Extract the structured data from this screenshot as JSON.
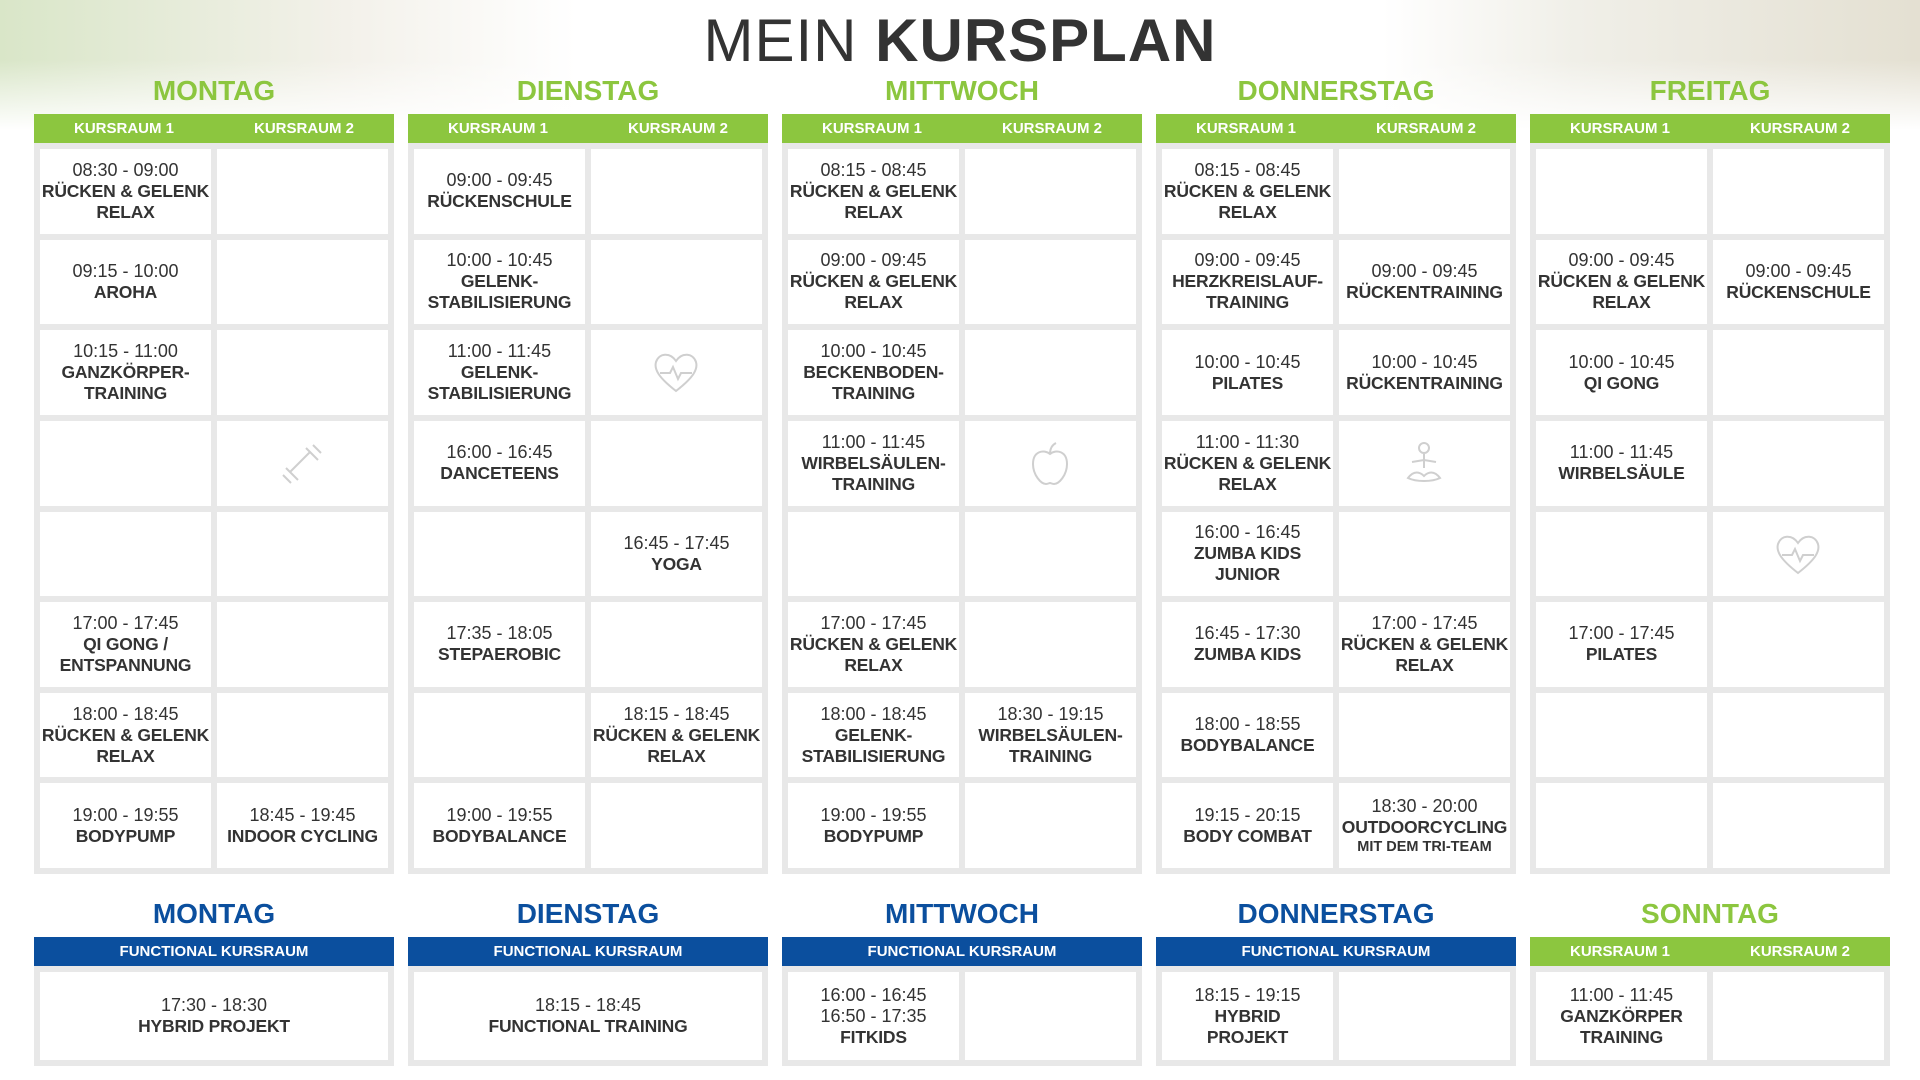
{
  "header": {
    "title_light": "MEIN",
    "title_bold": "KURSPLAN"
  },
  "week": [
    {
      "day": "MONTAG",
      "rooms": [
        "KURSRAUM 1",
        "KURSRAUM 2"
      ],
      "rows": [
        [
          {
            "time": [
              "08:30 - 09:00"
            ],
            "name": [
              "RÜCKEN & GELENK",
              "RELAX"
            ]
          },
          null
        ],
        [
          {
            "time": [
              "09:15 - 10:00"
            ],
            "name": [
              "AROHA"
            ]
          },
          null
        ],
        [
          {
            "time": [
              "10:15 - 11:00"
            ],
            "name": [
              "GANZKÖRPER-",
              "TRAINING"
            ]
          },
          null
        ],
        [
          null,
          null
        ],
        [
          null,
          null
        ],
        [
          {
            "time": [
              "17:00 - 17:45"
            ],
            "name": [
              "QI GONG /",
              "ENTSPANNUNG"
            ]
          },
          null
        ],
        [
          {
            "time": [
              "18:00 - 18:45"
            ],
            "name": [
              "RÜCKEN & GELENK",
              "RELAX"
            ]
          },
          null
        ],
        [
          {
            "time": [
              "19:00 - 19:55"
            ],
            "name": [
              "BODYPUMP"
            ]
          },
          {
            "time": [
              "18:45 - 19:45"
            ],
            "name": [
              "INDOOR CYCLING"
            ]
          }
        ]
      ]
    },
    {
      "day": "DIENSTAG",
      "rooms": [
        "KURSRAUM 1",
        "KURSRAUM 2"
      ],
      "rows": [
        [
          {
            "time": [
              "09:00 - 09:45"
            ],
            "name": [
              "RÜCKENSCHULE"
            ]
          },
          null
        ],
        [
          {
            "time": [
              "10:00 - 10:45"
            ],
            "name": [
              "GELENK-",
              "STABILISIERUNG"
            ]
          },
          null
        ],
        [
          {
            "time": [
              "11:00 - 11:45"
            ],
            "name": [
              "GELENK-",
              "STABILISIERUNG"
            ]
          },
          null
        ],
        [
          {
            "time": [
              "16:00 - 16:45"
            ],
            "name": [
              "DANCETEENS"
            ]
          },
          null
        ],
        [
          null,
          {
            "time": [
              "16:45 - 17:45"
            ],
            "name": [
              "YOGA"
            ]
          }
        ],
        [
          {
            "time": [
              "17:35 - 18:05"
            ],
            "name": [
              "STEPAEROBIC"
            ]
          },
          null
        ],
        [
          null,
          {
            "time": [
              "18:15 - 18:45"
            ],
            "name": [
              "RÜCKEN & GELENK",
              "RELAX"
            ]
          }
        ],
        [
          {
            "time": [
              "19:00 - 19:55"
            ],
            "name": [
              "BODYBALANCE"
            ]
          },
          null
        ]
      ]
    },
    {
      "day": "MITTWOCH",
      "rooms": [
        "KURSRAUM 1",
        "KURSRAUM 2"
      ],
      "rows": [
        [
          {
            "time": [
              "08:15 - 08:45"
            ],
            "name": [
              "RÜCKEN & GELENK",
              "RELAX"
            ]
          },
          null
        ],
        [
          {
            "time": [
              "09:00 - 09:45"
            ],
            "name": [
              "RÜCKEN & GELENK",
              "RELAX"
            ]
          },
          null
        ],
        [
          {
            "time": [
              "10:00 - 10:45"
            ],
            "name": [
              "BECKENBODEN-",
              "TRAINING"
            ]
          },
          null
        ],
        [
          {
            "time": [
              "11:00 - 11:45"
            ],
            "name": [
              "WIRBELSÄULEN-",
              "TRAINING"
            ]
          },
          null
        ],
        [
          null,
          null
        ],
        [
          {
            "time": [
              "17:00 - 17:45"
            ],
            "name": [
              "RÜCKEN & GELENK",
              "RELAX"
            ]
          },
          null
        ],
        [
          {
            "time": [
              "18:00 - 18:45"
            ],
            "name": [
              "GELENK-",
              "STABILISIERUNG"
            ]
          },
          {
            "time": [
              "18:30 - 19:15"
            ],
            "name": [
              "WIRBELSÄULEN-",
              "TRAINING"
            ]
          }
        ],
        [
          {
            "time": [
              "19:00 - 19:55"
            ],
            "name": [
              "BODYPUMP"
            ]
          },
          null
        ]
      ]
    },
    {
      "day": "DONNERSTAG",
      "rooms": [
        "KURSRAUM 1",
        "KURSRAUM 2"
      ],
      "rows": [
        [
          {
            "time": [
              "08:15 - 08:45"
            ],
            "name": [
              "RÜCKEN & GELENK",
              "RELAX"
            ]
          },
          null
        ],
        [
          {
            "time": [
              "09:00 - 09:45"
            ],
            "name": [
              "HERZKREISLAUF-",
              "TRAINING"
            ]
          },
          {
            "time": [
              "09:00 - 09:45"
            ],
            "name": [
              "RÜCKENTRAINING"
            ]
          }
        ],
        [
          {
            "time": [
              "10:00 - 10:45"
            ],
            "name": [
              "PILATES"
            ]
          },
          {
            "time": [
              "10:00 - 10:45"
            ],
            "name": [
              "RÜCKENTRAINING"
            ]
          }
        ],
        [
          {
            "time": [
              "11:00 - 11:30"
            ],
            "name": [
              "RÜCKEN & GELENK",
              "RELAX"
            ]
          },
          null
        ],
        [
          {
            "time": [
              "16:00 - 16:45"
            ],
            "name": [
              "ZUMBA KIDS",
              "JUNIOR"
            ]
          },
          null
        ],
        [
          {
            "time": [
              "16:45 - 17:30"
            ],
            "name": [
              "ZUMBA KIDS"
            ]
          },
          {
            "time": [
              "17:00 - 17:45"
            ],
            "name": [
              "RÜCKEN & GELENK",
              "RELAX"
            ]
          }
        ],
        [
          {
            "time": [
              "18:00 - 18:55"
            ],
            "name": [
              "BODYBALANCE"
            ]
          },
          null
        ],
        [
          {
            "time": [
              "19:15 - 20:15"
            ],
            "name": [
              "BODY COMBAT"
            ]
          },
          {
            "time": [
              "18:30 - 20:00"
            ],
            "name": [
              "OUTDOORCYCLING"
            ],
            "note": "MIT DEM TRI-TEAM"
          }
        ]
      ]
    },
    {
      "day": "FREITAG",
      "rooms": [
        "KURSRAUM 1",
        "KURSRAUM 2"
      ],
      "rows": [
        [
          null,
          null
        ],
        [
          {
            "time": [
              "09:00 - 09:45"
            ],
            "name": [
              "RÜCKEN & GELENK",
              "RELAX"
            ]
          },
          {
            "time": [
              "09:00 - 09:45"
            ],
            "name": [
              "RÜCKENSCHULE"
            ]
          }
        ],
        [
          {
            "time": [
              "10:00 - 10:45"
            ],
            "name": [
              "QI GONG"
            ]
          },
          null
        ],
        [
          {
            "time": [
              "11:00 - 11:45"
            ],
            "name": [
              "WIRBELSÄULE"
            ]
          },
          null
        ],
        [
          null,
          null
        ],
        [
          {
            "time": [
              "17:00 - 17:45"
            ],
            "name": [
              "PILATES"
            ]
          },
          null
        ],
        [
          null,
          null
        ],
        [
          null,
          null
        ]
      ]
    }
  ],
  "extra": [
    {
      "day": "MONTAG",
      "room": "FUNCTIONAL KURSRAUM",
      "cells": [
        {
          "time": [
            "17:30 - 18:30"
          ],
          "name": [
            "HYBRID PROJEKT"
          ]
        }
      ]
    },
    {
      "day": "DIENSTAG",
      "room": "FUNCTIONAL KURSRAUM",
      "cells": [
        {
          "time": [
            "18:15 - 18:45"
          ],
          "name": [
            "FUNCTIONAL TRAINING"
          ]
        }
      ]
    },
    {
      "day": "MITTWOCH",
      "room": "FUNCTIONAL KURSRAUM",
      "cells": [
        {
          "time": [
            "16:00 - 16:45",
            "16:50 - 17:35"
          ],
          "name": [
            "FITKIDS"
          ]
        },
        null
      ]
    },
    {
      "day": "DONNERSTAG",
      "room": "FUNCTIONAL KURSRAUM",
      "cells": [
        {
          "time": [
            "18:15 - 19:15"
          ],
          "name": [
            "HYBRID",
            "PROJEKT"
          ]
        },
        null
      ]
    },
    {
      "day": "SONNTAG",
      "rooms": [
        "KURSRAUM 1",
        "KURSRAUM 2"
      ],
      "cells": [
        {
          "time": [
            "11:00 - 11:45"
          ],
          "name": [
            "GANZKÖRPER",
            "TRAINING"
          ]
        },
        null
      ]
    }
  ]
}
